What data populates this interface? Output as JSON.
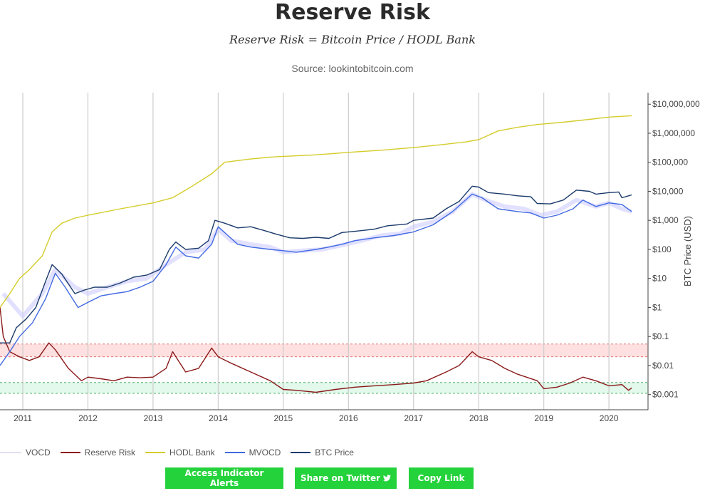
{
  "header": {
    "title": "Reserve Risk",
    "formula": "Reserve Risk = Bitcoin Price / HODL Bank",
    "source": "Source: lookintobitcoin.com"
  },
  "chart_data": {
    "type": "line",
    "x_ticks": [
      "2011",
      "2012",
      "2013",
      "2014",
      "2015",
      "2016",
      "2017",
      "2018",
      "2019",
      "2020"
    ],
    "x_range": [
      2010.65,
      2020.6
    ],
    "y_scale": "log",
    "y_range": [
      0.0003,
      25000000
    ],
    "y_ticks": [
      {
        "value": 10000000,
        "label": "$10,000,000"
      },
      {
        "value": 1000000,
        "label": "$1,000,000"
      },
      {
        "value": 100000,
        "label": "$100,000"
      },
      {
        "value": 10000,
        "label": "$10,000"
      },
      {
        "value": 1000,
        "label": "$1,000"
      },
      {
        "value": 100,
        "label": "$100"
      },
      {
        "value": 10,
        "label": "$10"
      },
      {
        "value": 1,
        "label": "$1"
      },
      {
        "value": 0.1,
        "label": "$0.1"
      },
      {
        "value": 0.01,
        "label": "$0.01"
      },
      {
        "value": 0.001,
        "label": "$0.001"
      }
    ],
    "ylabel": "BTC Price (USD)",
    "grid_x": true,
    "grid_y": false,
    "bands": [
      {
        "name": "high-risk",
        "from": 0.02,
        "to": 0.055,
        "color": "#ffd6d6"
      },
      {
        "name": "low-risk",
        "from": 0.0011,
        "to": 0.0026,
        "color": "#d8f7e4"
      }
    ],
    "legend_position": "bottom-left",
    "series": [
      {
        "name": "VOCD",
        "color": "#c8c8ff",
        "points": [
          [
            2010.7,
            3
          ],
          [
            2011.0,
            0.5
          ],
          [
            2011.3,
            3
          ],
          [
            2011.5,
            20
          ],
          [
            2011.8,
            5
          ],
          [
            2012.0,
            3
          ],
          [
            2012.3,
            5
          ],
          [
            2012.6,
            8
          ],
          [
            2012.9,
            10
          ],
          [
            2013.2,
            30
          ],
          [
            2013.5,
            80
          ],
          [
            2013.8,
            100
          ],
          [
            2014.0,
            500
          ],
          [
            2014.2,
            200
          ],
          [
            2014.5,
            150
          ],
          [
            2014.8,
            120
          ],
          [
            2015.0,
            80
          ],
          [
            2015.3,
            90
          ],
          [
            2015.6,
            100
          ],
          [
            2015.9,
            140
          ],
          [
            2016.2,
            200
          ],
          [
            2016.5,
            300
          ],
          [
            2016.8,
            350
          ],
          [
            2017.0,
            600
          ],
          [
            2017.3,
            900
          ],
          [
            2017.6,
            2000
          ],
          [
            2017.9,
            8000
          ],
          [
            2018.1,
            5000
          ],
          [
            2018.4,
            3000
          ],
          [
            2018.7,
            2500
          ],
          [
            2018.95,
            1500
          ],
          [
            2019.2,
            2000
          ],
          [
            2019.5,
            5000
          ],
          [
            2019.8,
            3000
          ],
          [
            2020.0,
            4000
          ],
          [
            2020.2,
            2500
          ],
          [
            2020.35,
            2000
          ]
        ]
      },
      {
        "name": "Reserve Risk",
        "color": "#8b1a1a",
        "points": [
          [
            2010.65,
            1.0
          ],
          [
            2010.7,
            0.1
          ],
          [
            2010.8,
            0.03
          ],
          [
            2010.95,
            0.02
          ],
          [
            2011.1,
            0.015
          ],
          [
            2011.25,
            0.02
          ],
          [
            2011.4,
            0.06
          ],
          [
            2011.5,
            0.035
          ],
          [
            2011.7,
            0.008
          ],
          [
            2011.9,
            0.003
          ],
          [
            2012.0,
            0.004
          ],
          [
            2012.2,
            0.0035
          ],
          [
            2012.4,
            0.003
          ],
          [
            2012.6,
            0.004
          ],
          [
            2012.8,
            0.0038
          ],
          [
            2013.0,
            0.004
          ],
          [
            2013.2,
            0.008
          ],
          [
            2013.3,
            0.03
          ],
          [
            2013.5,
            0.006
          ],
          [
            2013.7,
            0.008
          ],
          [
            2013.9,
            0.04
          ],
          [
            2014.0,
            0.02
          ],
          [
            2014.2,
            0.012
          ],
          [
            2014.5,
            0.006
          ],
          [
            2014.8,
            0.003
          ],
          [
            2015.0,
            0.0015
          ],
          [
            2015.2,
            0.0014
          ],
          [
            2015.5,
            0.0012
          ],
          [
            2015.8,
            0.0015
          ],
          [
            2016.1,
            0.0018
          ],
          [
            2016.4,
            0.002
          ],
          [
            2016.7,
            0.0022
          ],
          [
            2017.0,
            0.0025
          ],
          [
            2017.2,
            0.003
          ],
          [
            2017.5,
            0.006
          ],
          [
            2017.7,
            0.01
          ],
          [
            2017.9,
            0.03
          ],
          [
            2018.0,
            0.02
          ],
          [
            2018.2,
            0.015
          ],
          [
            2018.4,
            0.008
          ],
          [
            2018.6,
            0.005
          ],
          [
            2018.9,
            0.003
          ],
          [
            2019.0,
            0.0016
          ],
          [
            2019.2,
            0.0018
          ],
          [
            2019.4,
            0.0025
          ],
          [
            2019.6,
            0.004
          ],
          [
            2019.8,
            0.003
          ],
          [
            2020.0,
            0.002
          ],
          [
            2020.2,
            0.0022
          ],
          [
            2020.3,
            0.0014
          ],
          [
            2020.35,
            0.0017
          ]
        ]
      },
      {
        "name": "HODL Bank",
        "color": "#d4cc2a",
        "points": [
          [
            2010.65,
            1
          ],
          [
            2010.8,
            3
          ],
          [
            2010.95,
            10
          ],
          [
            2011.1,
            20
          ],
          [
            2011.3,
            60
          ],
          [
            2011.45,
            400
          ],
          [
            2011.6,
            800
          ],
          [
            2011.8,
            1200
          ],
          [
            2012.0,
            1500
          ],
          [
            2012.5,
            2500
          ],
          [
            2013.0,
            4000
          ],
          [
            2013.3,
            6000
          ],
          [
            2013.6,
            15000
          ],
          [
            2013.9,
            40000
          ],
          [
            2014.1,
            100000
          ],
          [
            2014.5,
            130000
          ],
          [
            2014.8,
            150000
          ],
          [
            2015.0,
            160000
          ],
          [
            2015.5,
            180000
          ],
          [
            2016.0,
            220000
          ],
          [
            2016.5,
            260000
          ],
          [
            2017.0,
            320000
          ],
          [
            2017.5,
            420000
          ],
          [
            2017.8,
            500000
          ],
          [
            2018.0,
            600000
          ],
          [
            2018.3,
            1200000
          ],
          [
            2018.6,
            1600000
          ],
          [
            2018.9,
            2000000
          ],
          [
            2019.3,
            2400000
          ],
          [
            2019.7,
            3000000
          ],
          [
            2020.0,
            3600000
          ],
          [
            2020.35,
            4000000
          ]
        ]
      },
      {
        "name": "MVOCD",
        "color": "#4169e1",
        "points": [
          [
            2010.65,
            0.01
          ],
          [
            2010.8,
            0.03
          ],
          [
            2010.95,
            0.1
          ],
          [
            2011.15,
            0.3
          ],
          [
            2011.35,
            2
          ],
          [
            2011.5,
            15
          ],
          [
            2011.65,
            5
          ],
          [
            2011.85,
            1
          ],
          [
            2012.0,
            1.5
          ],
          [
            2012.2,
            2.5
          ],
          [
            2012.4,
            3
          ],
          [
            2012.6,
            3.5
          ],
          [
            2012.8,
            5
          ],
          [
            2013.0,
            8
          ],
          [
            2013.2,
            30
          ],
          [
            2013.35,
            120
          ],
          [
            2013.5,
            60
          ],
          [
            2013.7,
            50
          ],
          [
            2013.9,
            150
          ],
          [
            2014.0,
            600
          ],
          [
            2014.15,
            300
          ],
          [
            2014.3,
            150
          ],
          [
            2014.5,
            120
          ],
          [
            2014.8,
            100
          ],
          [
            2015.0,
            90
          ],
          [
            2015.2,
            80
          ],
          [
            2015.5,
            100
          ],
          [
            2015.7,
            120
          ],
          [
            2015.9,
            150
          ],
          [
            2016.1,
            200
          ],
          [
            2016.4,
            250
          ],
          [
            2016.7,
            300
          ],
          [
            2017.0,
            400
          ],
          [
            2017.3,
            700
          ],
          [
            2017.6,
            2000
          ],
          [
            2017.9,
            8000
          ],
          [
            2018.05,
            6000
          ],
          [
            2018.3,
            2500
          ],
          [
            2018.6,
            2000
          ],
          [
            2018.8,
            1800
          ],
          [
            2019.0,
            1200
          ],
          [
            2019.2,
            1500
          ],
          [
            2019.45,
            2500
          ],
          [
            2019.6,
            5000
          ],
          [
            2019.8,
            3000
          ],
          [
            2020.0,
            4000
          ],
          [
            2020.2,
            3500
          ],
          [
            2020.35,
            2000
          ]
        ]
      },
      {
        "name": "BTC Price",
        "color": "#1a3a6b",
        "points": [
          [
            2010.65,
            0.06
          ],
          [
            2010.8,
            0.06
          ],
          [
            2010.9,
            0.2
          ],
          [
            2011.05,
            0.4
          ],
          [
            2011.2,
            1
          ],
          [
            2011.35,
            8
          ],
          [
            2011.45,
            30
          ],
          [
            2011.6,
            14
          ],
          [
            2011.8,
            3
          ],
          [
            2011.95,
            4
          ],
          [
            2012.1,
            5
          ],
          [
            2012.3,
            5
          ],
          [
            2012.5,
            7
          ],
          [
            2012.7,
            11
          ],
          [
            2012.9,
            13
          ],
          [
            2013.1,
            20
          ],
          [
            2013.25,
            100
          ],
          [
            2013.35,
            180
          ],
          [
            2013.5,
            100
          ],
          [
            2013.7,
            110
          ],
          [
            2013.85,
            200
          ],
          [
            2013.95,
            1000
          ],
          [
            2014.1,
            800
          ],
          [
            2014.3,
            550
          ],
          [
            2014.5,
            600
          ],
          [
            2014.7,
            450
          ],
          [
            2014.9,
            330
          ],
          [
            2015.1,
            250
          ],
          [
            2015.3,
            240
          ],
          [
            2015.5,
            260
          ],
          [
            2015.7,
            240
          ],
          [
            2015.9,
            380
          ],
          [
            2016.1,
            420
          ],
          [
            2016.4,
            500
          ],
          [
            2016.6,
            650
          ],
          [
            2016.9,
            750
          ],
          [
            2017.0,
            1000
          ],
          [
            2017.3,
            1200
          ],
          [
            2017.5,
            2500
          ],
          [
            2017.7,
            4500
          ],
          [
            2017.9,
            15000
          ],
          [
            2018.0,
            14000
          ],
          [
            2018.15,
            9000
          ],
          [
            2018.4,
            8000
          ],
          [
            2018.6,
            7000
          ],
          [
            2018.8,
            6500
          ],
          [
            2018.9,
            3800
          ],
          [
            2019.1,
            3700
          ],
          [
            2019.3,
            5000
          ],
          [
            2019.5,
            11000
          ],
          [
            2019.7,
            10000
          ],
          [
            2019.8,
            8000
          ],
          [
            2020.0,
            9000
          ],
          [
            2020.15,
            9500
          ],
          [
            2020.2,
            6000
          ],
          [
            2020.3,
            7000
          ],
          [
            2020.35,
            7500
          ]
        ]
      }
    ]
  },
  "legend": {
    "items": [
      {
        "label": "VOCD",
        "color": "#e0e0f0"
      },
      {
        "label": "Reserve Risk",
        "color": "#8b1a1a"
      },
      {
        "label": "HODL Bank",
        "color": "#d4cc2a"
      },
      {
        "label": "MVOCD",
        "color": "#4169e1"
      },
      {
        "label": "BTC Price",
        "color": "#1a3a6b"
      }
    ]
  },
  "buttons": {
    "alerts": "Access Indicator Alerts",
    "twitter": "Share on Twitter",
    "copy": "Copy Link"
  }
}
